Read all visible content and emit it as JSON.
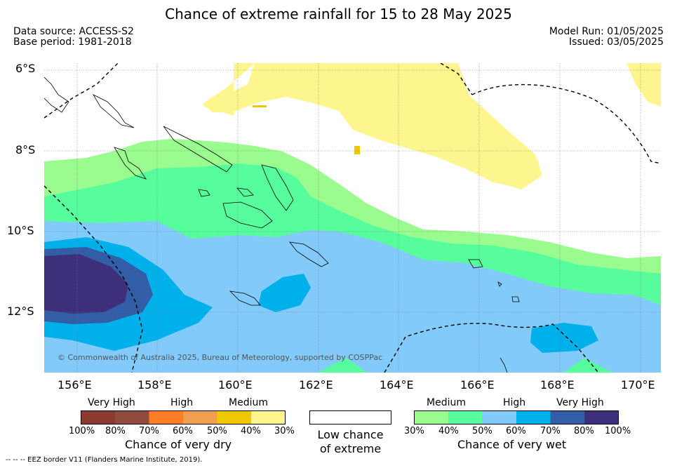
{
  "title": "Chance of extreme rainfall for 15 to 28 May 2025",
  "header": {
    "data_source": "Data source: ACCESS-S2",
    "base_period": "Base period: 1981-2018",
    "model_run": "Model Run: 01/05/2025",
    "issued": "Issued: 03/05/2025"
  },
  "map": {
    "lat_labels": [
      "6°S",
      "8°S",
      "10°S",
      "12°S"
    ],
    "lon_labels": [
      "156°E",
      "158°E",
      "160°E",
      "162°E",
      "164°E",
      "166°E",
      "168°E",
      "170°E"
    ],
    "copyright": "© Commonwealth of Australia 2025, Bureau of Meteorology, supported by COSPPac"
  },
  "legend_dry": {
    "categories": [
      "Very High",
      "High",
      "Medium"
    ],
    "ticks": [
      "100%",
      "80%",
      "70%",
      "60%",
      "50%",
      "40%",
      "30%"
    ],
    "title": "Chance of very dry",
    "colors": [
      "#8b3a30",
      "#8f4c3c",
      "#fd7e27",
      "#ef9f4f",
      "#eec800",
      "#fdf68e"
    ]
  },
  "legend_low": {
    "line1": "Low chance",
    "line2": "of extreme"
  },
  "legend_wet": {
    "categories": [
      "Medium",
      "High",
      "Very High"
    ],
    "ticks": [
      "30%",
      "40%",
      "50%",
      "60%",
      "70%",
      "80%",
      "100%"
    ],
    "title": "Chance of very wet",
    "colors": [
      "#9afc8e",
      "#57fd9c",
      "#82cafa",
      "#00b0eb",
      "#325ea8",
      "#3d2f79"
    ]
  },
  "footer": {
    "eez": "--  --  -- EEZ border V11 (Flanders Marine Institute, 2019)."
  }
}
